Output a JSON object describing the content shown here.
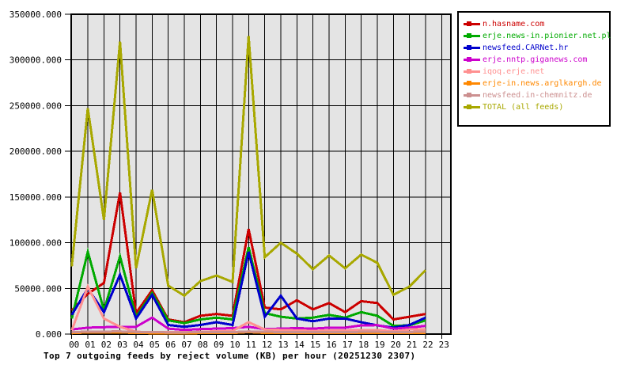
{
  "title": "Top 7 outgoing feeds by reject volume (KB) per hour (20251230 2307)",
  "chart_data": {
    "type": "line",
    "title": "Top 7 outgoing feeds by reject volume (KB) per hour (20251230 2307)",
    "xlabel": "",
    "ylabel": "",
    "x_labels": [
      "00",
      "01",
      "02",
      "03",
      "04",
      "05",
      "06",
      "07",
      "08",
      "09",
      "10",
      "11",
      "12",
      "13",
      "14",
      "15",
      "16",
      "17",
      "18",
      "19",
      "20",
      "21",
      "22",
      "23"
    ],
    "ylim": [
      0,
      350000
    ],
    "y_tick_step": 50000,
    "y_tick_labels": [
      "0.000",
      "50000.000",
      "100000.000",
      "150000.000",
      "200000.000",
      "250000.000",
      "300000.000",
      "350000.000"
    ],
    "grid": true,
    "plot_bg": "#e4e4e4",
    "legend_position": "outside-top-right",
    "note": "data plotted for hours 00-22 only; hour 23 has no data",
    "series": [
      {
        "name": "n.hasname.com",
        "color": "#cc0000",
        "values": [
          26000,
          44000,
          56000,
          155000,
          23000,
          48000,
          16000,
          13000,
          20000,
          22000,
          20000,
          115000,
          29000,
          27000,
          37000,
          27000,
          34000,
          24000,
          36000,
          34000,
          16000,
          19000,
          22000
        ]
      },
      {
        "name": "erje.news-in.pionier.net.pl",
        "color": "#00aa00",
        "values": [
          17000,
          90000,
          26000,
          85000,
          19000,
          45000,
          15000,
          12000,
          16000,
          18000,
          16000,
          95000,
          23000,
          19000,
          17000,
          18000,
          21000,
          18000,
          24000,
          20000,
          9000,
          9500,
          15000
        ]
      },
      {
        "name": "newsfeed.CARNet.hr",
        "color": "#0000cc",
        "values": [
          21000,
          50000,
          24000,
          65000,
          17000,
          43000,
          10000,
          8000,
          10000,
          13000,
          10000,
          90000,
          19000,
          42000,
          17000,
          14000,
          17000,
          17000,
          13000,
          9500,
          7000,
          10000,
          18000
        ]
      },
      {
        "name": "erje.nntp.giganews.com",
        "color": "#cc00cc",
        "values": [
          5000,
          7000,
          7500,
          8000,
          8000,
          18000,
          6000,
          4500,
          5500,
          6000,
          6500,
          8000,
          5500,
          6000,
          6500,
          6000,
          7000,
          7000,
          9500,
          9800,
          6000,
          7000,
          9000
        ]
      },
      {
        "name": "iqoq.erje.net",
        "color": "#ff9090",
        "values": [
          4000,
          52000,
          17000,
          8000,
          2500,
          2000,
          2000,
          2000,
          2500,
          3000,
          3500,
          13000,
          5000,
          4500,
          4000,
          3500,
          4000,
          4000,
          4500,
          4500,
          3000,
          5000,
          5000
        ]
      },
      {
        "name": "erje-in.news.arglkargh.de",
        "color": "#ff8800",
        "values": [
          1000,
          1800,
          1800,
          1800,
          1200,
          1000,
          900,
          900,
          1100,
          1200,
          1200,
          2200,
          1300,
          1200,
          1200,
          1100,
          1200,
          1200,
          1300,
          1300,
          1100,
          1200,
          1400
        ]
      },
      {
        "name": "newsfeed.in-chemnitz.de",
        "color": "#cc9090",
        "values": [
          2000,
          2700,
          2800,
          2900,
          2300,
          2100,
          1900,
          1900,
          2100,
          2200,
          2200,
          2900,
          2400,
          2300,
          2200,
          2100,
          2300,
          2200,
          2400,
          2400,
          2100,
          2300,
          2500
        ]
      },
      {
        "name": "TOTAL (all feeds)",
        "color": "#a8a800",
        "values": [
          74000,
          247000,
          125000,
          320000,
          72000,
          158000,
          53000,
          42000,
          58000,
          64000,
          57000,
          326000,
          84000,
          100000,
          88000,
          71000,
          86000,
          72000,
          87000,
          78000,
          43000,
          52000,
          70000
        ]
      }
    ]
  }
}
